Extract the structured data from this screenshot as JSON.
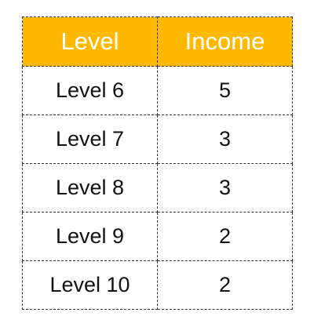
{
  "table": {
    "header_color": "#FFB900",
    "columns": [
      "Level",
      "Income"
    ],
    "rows": [
      [
        "Level 6",
        "5"
      ],
      [
        "Level 7",
        "3"
      ],
      [
        "Level 8",
        "3"
      ],
      [
        "Level 9",
        "2"
      ],
      [
        "Level 10",
        "2"
      ]
    ]
  }
}
